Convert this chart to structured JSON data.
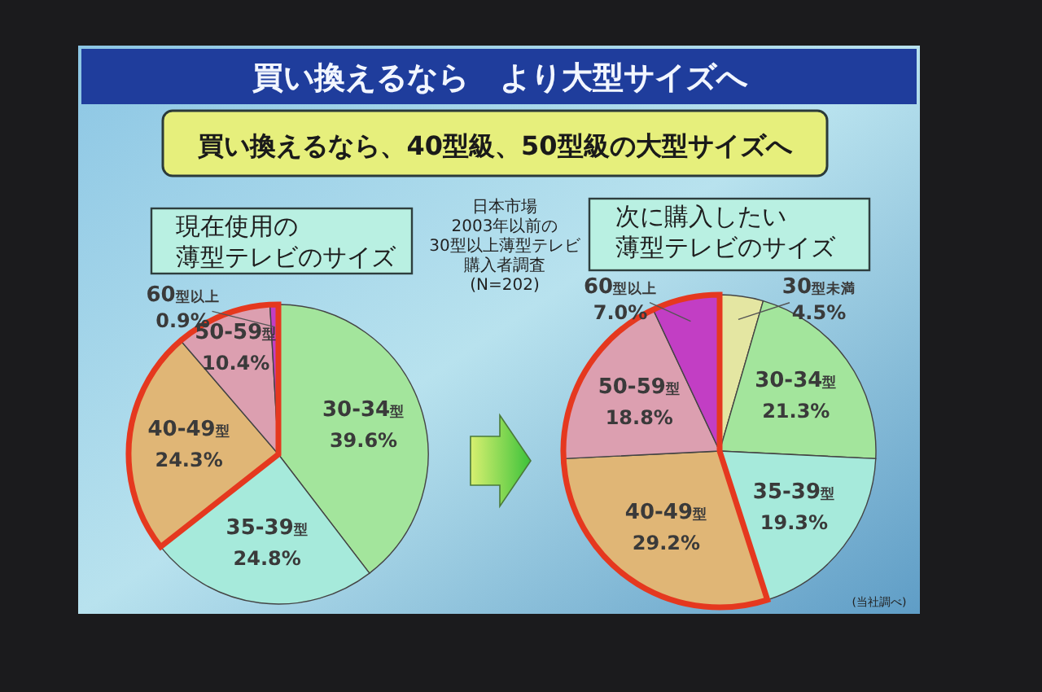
{
  "chart_data": [
    {
      "type": "other",
      "title": "買い換えるなら　より大型サイズへ",
      "subtitle": "買い換えるなら、40型級、50型級の大型サイズへ",
      "annotations": [
        "日本市場2003年以前の30型以上薄型テレビ購入者調査(N=202)",
        "(当社調べ)"
      ]
    },
    {
      "type": "pie",
      "title": "現在使用の薄型テレビのサイズ",
      "categories": [
        "30-34型",
        "35-39型",
        "40-49型",
        "50-59型",
        "60型以上"
      ],
      "values": [
        39.6,
        24.8,
        24.3,
        10.4,
        0.9
      ],
      "colors": [
        "#a3e59c",
        "#a6eadb",
        "#e0b676",
        "#dc9fb0",
        "#c23ec4"
      ],
      "value_labels": [
        "39.6%",
        "24.8%",
        "24.3%",
        "10.4%",
        "0.9%"
      ]
    },
    {
      "type": "pie",
      "title": "次に購入したい薄型テレビのサイズ",
      "categories": [
        "30型未満",
        "30-34型",
        "35-39型",
        "40-49型",
        "50-59型",
        "60型以上"
      ],
      "values": [
        4.5,
        21.3,
        19.3,
        29.2,
        18.8,
        7.0
      ],
      "colors": [
        "#e4e6a2",
        "#a3e59c",
        "#a6eadb",
        "#e0b676",
        "#dc9fb0",
        "#c23ec4"
      ],
      "value_labels": [
        "4.5%",
        "21.3%",
        "19.3%",
        "29.2%",
        "18.8%",
        "7.0%"
      ]
    }
  ]
}
